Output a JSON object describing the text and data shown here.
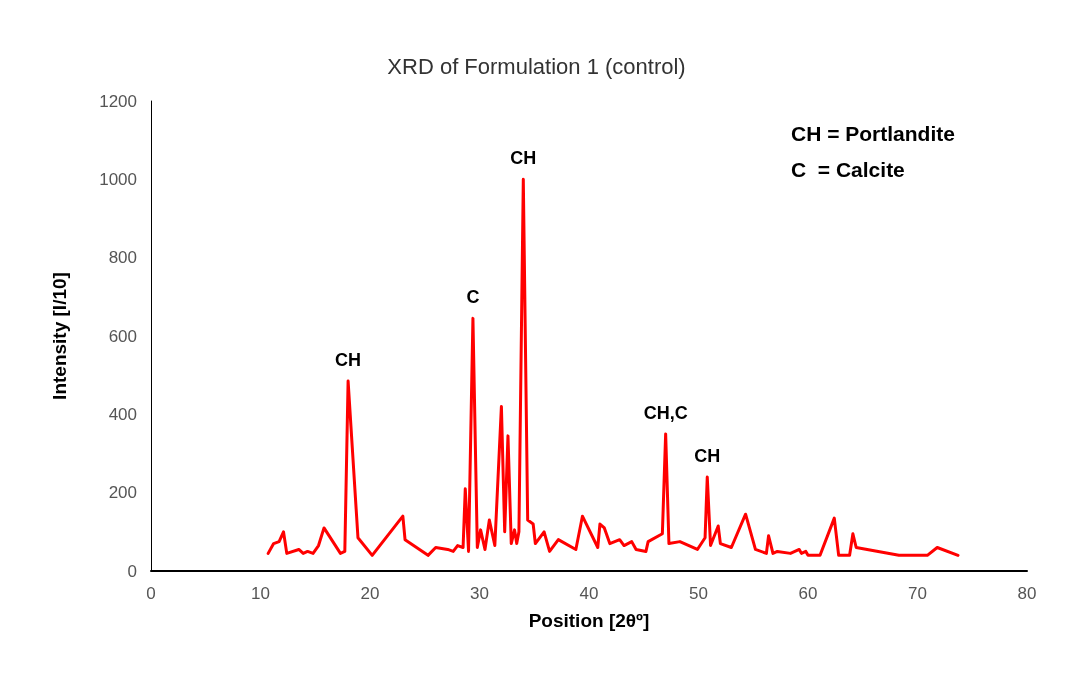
{
  "chart_data": {
    "type": "line",
    "title": "XRD of Formulation 1 (control)",
    "xlabel": "Position [2θº]",
    "ylabel": "Intensity [I/10]",
    "x": [
      10.7,
      11.2,
      11.7,
      12.1,
      12.4,
      13.5,
      13.9,
      14.3,
      14.8,
      15.3,
      15.8,
      17.3,
      17.7,
      18.0,
      18.9,
      20.2,
      23.0,
      23.2,
      25.3,
      26.0,
      27.1,
      27.6,
      28.0,
      28.5,
      28.7,
      29.0,
      29.4,
      29.8,
      30.1,
      30.5,
      30.9,
      31.4,
      32.0,
      32.3,
      32.6,
      32.9,
      33.2,
      33.4,
      33.6,
      34.0,
      34.4,
      34.9,
      35.1,
      35.9,
      36.4,
      37.2,
      38.8,
      39.4,
      40.8,
      41.0,
      41.4,
      41.9,
      42.8,
      43.2,
      43.9,
      44.3,
      45.2,
      45.4,
      46.7,
      47.0,
      47.3,
      48.3,
      49.9,
      50.6,
      50.8,
      51.1,
      51.8,
      52.0,
      53.0,
      54.3,
      55.2,
      56.2,
      56.4,
      56.8,
      57.2,
      58.4,
      59.2,
      59.4,
      59.8,
      60.0,
      61.1,
      62.4,
      62.8,
      63.8,
      64.1,
      64.4,
      68.3,
      70.9,
      71.8,
      73.7
    ],
    "series": [
      {
        "color": "#ff0000",
        "values": [
          45,
          70,
          75,
          100,
          45,
          55,
          45,
          50,
          45,
          65,
          110,
          45,
          50,
          485,
          85,
          40,
          140,
          80,
          40,
          60,
          55,
          50,
          65,
          60,
          210,
          50,
          645,
          60,
          105,
          55,
          130,
          65,
          420,
          100,
          345,
          70,
          105,
          70,
          100,
          1000,
          130,
          120,
          70,
          100,
          50,
          80,
          55,
          140,
          60,
          120,
          110,
          70,
          80,
          65,
          75,
          55,
          50,
          75,
          95,
          350,
          70,
          75,
          55,
          85,
          240,
          65,
          115,
          70,
          60,
          145,
          55,
          45,
          90,
          45,
          50,
          45,
          55,
          45,
          50,
          40,
          40,
          135,
          40,
          40,
          95,
          60,
          40,
          40,
          60,
          40
        ]
      }
    ],
    "xlim": [
      0,
      80
    ],
    "xticks": [
      0,
      10,
      20,
      30,
      40,
      50,
      60,
      70,
      80
    ],
    "ylim": [
      0,
      1200
    ],
    "yticks": [
      0,
      200,
      400,
      600,
      800,
      1000,
      1200
    ],
    "grid": false,
    "marker": "none",
    "line_style": "solid",
    "annotations": [
      {
        "text": "CH",
        "x": 18.0,
        "y": 485
      },
      {
        "text": "C",
        "x": 29.4,
        "y": 645
      },
      {
        "text": "CH",
        "x": 34.0,
        "y": 1000
      },
      {
        "text": "CH,C",
        "x": 47.0,
        "y": 350
      },
      {
        "text": "CH",
        "x": 50.8,
        "y": 240
      },
      "CH = Portlandite",
      "C  = Calcite"
    ]
  }
}
